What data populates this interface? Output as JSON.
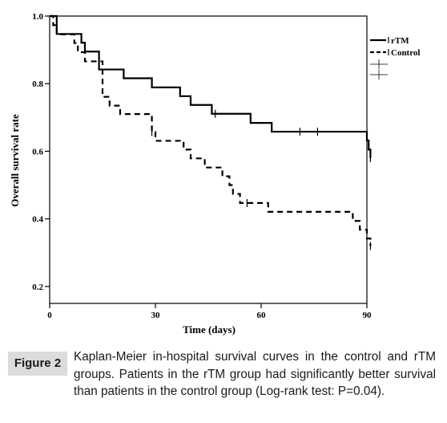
{
  "chart_data": {
    "type": "line",
    "subtype": "kaplan-meier step curve with censor marks",
    "title": "",
    "xlabel": "Time (days)",
    "ylabel": "Overall survival rate",
    "xlim": [
      0,
      90
    ],
    "ylim": [
      0.15,
      1.0
    ],
    "x_ticks": [
      0,
      30,
      60,
      90
    ],
    "y_ticks": [
      0.2,
      0.4,
      0.6,
      0.8,
      1.0
    ],
    "x_tick_labels": [
      "0",
      "30",
      "60",
      "90"
    ],
    "y_tick_labels": [
      "0.2",
      "0.4",
      "0.6",
      "0.8",
      "1.0"
    ],
    "grid": false,
    "legend_position": "top-right",
    "series": [
      {
        "name": "rTM",
        "style": "solid",
        "steps": [
          [
            0,
            1.0
          ],
          [
            2,
            0.947
          ],
          [
            9,
            0.921
          ],
          [
            10,
            0.895
          ],
          [
            14,
            0.842
          ],
          [
            21,
            0.816
          ],
          [
            29,
            0.789
          ],
          [
            37,
            0.763
          ],
          [
            40,
            0.737
          ],
          [
            46,
            0.711
          ],
          [
            57,
            0.684
          ],
          [
            63,
            0.658
          ],
          [
            90,
            0.632
          ],
          [
            90.5,
            0.605
          ],
          [
            91,
            0.58
          ]
        ],
        "censored": [
          [
            47,
            0.711
          ],
          [
            71,
            0.658
          ],
          [
            76,
            0.658
          ],
          [
            91,
            0.58
          ]
        ]
      },
      {
        "name": "Control",
        "style": "dashed",
        "steps": [
          [
            0,
            1.0
          ],
          [
            1,
            0.973
          ],
          [
            2,
            0.946
          ],
          [
            7,
            0.92
          ],
          [
            8,
            0.893
          ],
          [
            10,
            0.866
          ],
          [
            15,
            0.761
          ],
          [
            17,
            0.735
          ],
          [
            20,
            0.71
          ],
          [
            29,
            0.657
          ],
          [
            30,
            0.631
          ],
          [
            38,
            0.605
          ],
          [
            40,
            0.579
          ],
          [
            44,
            0.552
          ],
          [
            49,
            0.526
          ],
          [
            51,
            0.5
          ],
          [
            52,
            0.474
          ],
          [
            54,
            0.447
          ],
          [
            62,
            0.421
          ],
          [
            86,
            0.394
          ],
          [
            88,
            0.368
          ],
          [
            90,
            0.342
          ],
          [
            91,
            0.32
          ]
        ],
        "censored": [
          [
            29,
            0.657
          ],
          [
            56,
            0.447
          ],
          [
            91,
            0.32
          ]
        ]
      }
    ]
  },
  "caption": {
    "label": "Figure 2",
    "text": "Kaplan-Meier in-hospital survival curves in the control and rTM groups. Patients in the rTM group had significantly better survival than patients in the control group (Log-rank test: P=0.04)."
  }
}
